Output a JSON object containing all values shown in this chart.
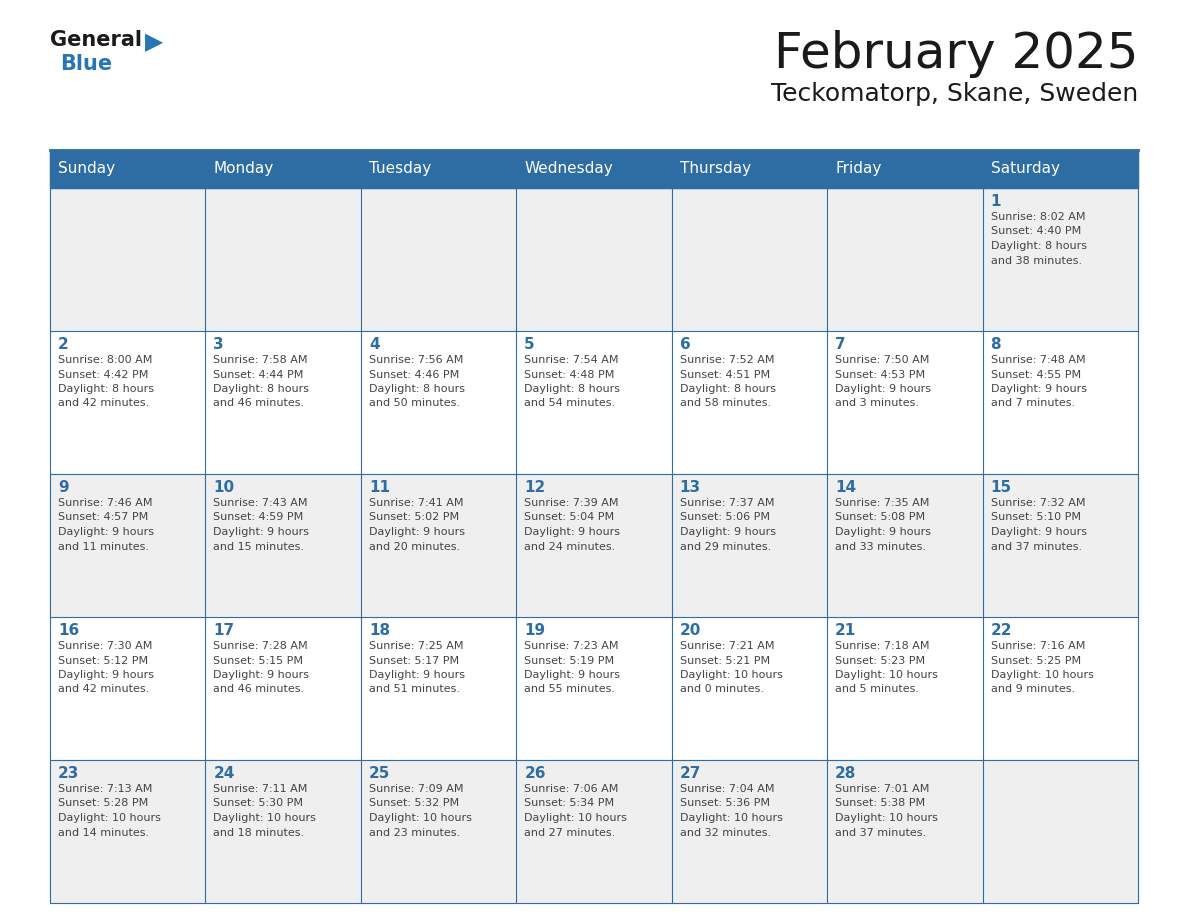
{
  "title": "February 2025",
  "subtitle": "Teckomatorp, Skane, Sweden",
  "header_bg": "#2E6DA4",
  "header_text": "#FFFFFF",
  "row_bg_light": "#EFEFEF",
  "row_bg_white": "#FFFFFF",
  "cell_border": "#2E6DA4",
  "day_headers": [
    "Sunday",
    "Monday",
    "Tuesday",
    "Wednesday",
    "Thursday",
    "Friday",
    "Saturday"
  ],
  "title_color": "#1a1a1a",
  "subtitle_color": "#1a1a1a",
  "day_num_color": "#2E6DA4",
  "cell_text_color": "#444444",
  "logo_general_color": "#1a1a1a",
  "logo_blue_color": "#2775b5",
  "weeks": [
    [
      {
        "day": null,
        "lines": []
      },
      {
        "day": null,
        "lines": []
      },
      {
        "day": null,
        "lines": []
      },
      {
        "day": null,
        "lines": []
      },
      {
        "day": null,
        "lines": []
      },
      {
        "day": null,
        "lines": []
      },
      {
        "day": 1,
        "lines": [
          "Sunrise: 8:02 AM",
          "Sunset: 4:40 PM",
          "Daylight: 8 hours",
          "and 38 minutes."
        ]
      }
    ],
    [
      {
        "day": 2,
        "lines": [
          "Sunrise: 8:00 AM",
          "Sunset: 4:42 PM",
          "Daylight: 8 hours",
          "and 42 minutes."
        ]
      },
      {
        "day": 3,
        "lines": [
          "Sunrise: 7:58 AM",
          "Sunset: 4:44 PM",
          "Daylight: 8 hours",
          "and 46 minutes."
        ]
      },
      {
        "day": 4,
        "lines": [
          "Sunrise: 7:56 AM",
          "Sunset: 4:46 PM",
          "Daylight: 8 hours",
          "and 50 minutes."
        ]
      },
      {
        "day": 5,
        "lines": [
          "Sunrise: 7:54 AM",
          "Sunset: 4:48 PM",
          "Daylight: 8 hours",
          "and 54 minutes."
        ]
      },
      {
        "day": 6,
        "lines": [
          "Sunrise: 7:52 AM",
          "Sunset: 4:51 PM",
          "Daylight: 8 hours",
          "and 58 minutes."
        ]
      },
      {
        "day": 7,
        "lines": [
          "Sunrise: 7:50 AM",
          "Sunset: 4:53 PM",
          "Daylight: 9 hours",
          "and 3 minutes."
        ]
      },
      {
        "day": 8,
        "lines": [
          "Sunrise: 7:48 AM",
          "Sunset: 4:55 PM",
          "Daylight: 9 hours",
          "and 7 minutes."
        ]
      }
    ],
    [
      {
        "day": 9,
        "lines": [
          "Sunrise: 7:46 AM",
          "Sunset: 4:57 PM",
          "Daylight: 9 hours",
          "and 11 minutes."
        ]
      },
      {
        "day": 10,
        "lines": [
          "Sunrise: 7:43 AM",
          "Sunset: 4:59 PM",
          "Daylight: 9 hours",
          "and 15 minutes."
        ]
      },
      {
        "day": 11,
        "lines": [
          "Sunrise: 7:41 AM",
          "Sunset: 5:02 PM",
          "Daylight: 9 hours",
          "and 20 minutes."
        ]
      },
      {
        "day": 12,
        "lines": [
          "Sunrise: 7:39 AM",
          "Sunset: 5:04 PM",
          "Daylight: 9 hours",
          "and 24 minutes."
        ]
      },
      {
        "day": 13,
        "lines": [
          "Sunrise: 7:37 AM",
          "Sunset: 5:06 PM",
          "Daylight: 9 hours",
          "and 29 minutes."
        ]
      },
      {
        "day": 14,
        "lines": [
          "Sunrise: 7:35 AM",
          "Sunset: 5:08 PM",
          "Daylight: 9 hours",
          "and 33 minutes."
        ]
      },
      {
        "day": 15,
        "lines": [
          "Sunrise: 7:32 AM",
          "Sunset: 5:10 PM",
          "Daylight: 9 hours",
          "and 37 minutes."
        ]
      }
    ],
    [
      {
        "day": 16,
        "lines": [
          "Sunrise: 7:30 AM",
          "Sunset: 5:12 PM",
          "Daylight: 9 hours",
          "and 42 minutes."
        ]
      },
      {
        "day": 17,
        "lines": [
          "Sunrise: 7:28 AM",
          "Sunset: 5:15 PM",
          "Daylight: 9 hours",
          "and 46 minutes."
        ]
      },
      {
        "day": 18,
        "lines": [
          "Sunrise: 7:25 AM",
          "Sunset: 5:17 PM",
          "Daylight: 9 hours",
          "and 51 minutes."
        ]
      },
      {
        "day": 19,
        "lines": [
          "Sunrise: 7:23 AM",
          "Sunset: 5:19 PM",
          "Daylight: 9 hours",
          "and 55 minutes."
        ]
      },
      {
        "day": 20,
        "lines": [
          "Sunrise: 7:21 AM",
          "Sunset: 5:21 PM",
          "Daylight: 10 hours",
          "and 0 minutes."
        ]
      },
      {
        "day": 21,
        "lines": [
          "Sunrise: 7:18 AM",
          "Sunset: 5:23 PM",
          "Daylight: 10 hours",
          "and 5 minutes."
        ]
      },
      {
        "day": 22,
        "lines": [
          "Sunrise: 7:16 AM",
          "Sunset: 5:25 PM",
          "Daylight: 10 hours",
          "and 9 minutes."
        ]
      }
    ],
    [
      {
        "day": 23,
        "lines": [
          "Sunrise: 7:13 AM",
          "Sunset: 5:28 PM",
          "Daylight: 10 hours",
          "and 14 minutes."
        ]
      },
      {
        "day": 24,
        "lines": [
          "Sunrise: 7:11 AM",
          "Sunset: 5:30 PM",
          "Daylight: 10 hours",
          "and 18 minutes."
        ]
      },
      {
        "day": 25,
        "lines": [
          "Sunrise: 7:09 AM",
          "Sunset: 5:32 PM",
          "Daylight: 10 hours",
          "and 23 minutes."
        ]
      },
      {
        "day": 26,
        "lines": [
          "Sunrise: 7:06 AM",
          "Sunset: 5:34 PM",
          "Daylight: 10 hours",
          "and 27 minutes."
        ]
      },
      {
        "day": 27,
        "lines": [
          "Sunrise: 7:04 AM",
          "Sunset: 5:36 PM",
          "Daylight: 10 hours",
          "and 32 minutes."
        ]
      },
      {
        "day": 28,
        "lines": [
          "Sunrise: 7:01 AM",
          "Sunset: 5:38 PM",
          "Daylight: 10 hours",
          "and 37 minutes."
        ]
      },
      {
        "day": null,
        "lines": []
      }
    ]
  ]
}
